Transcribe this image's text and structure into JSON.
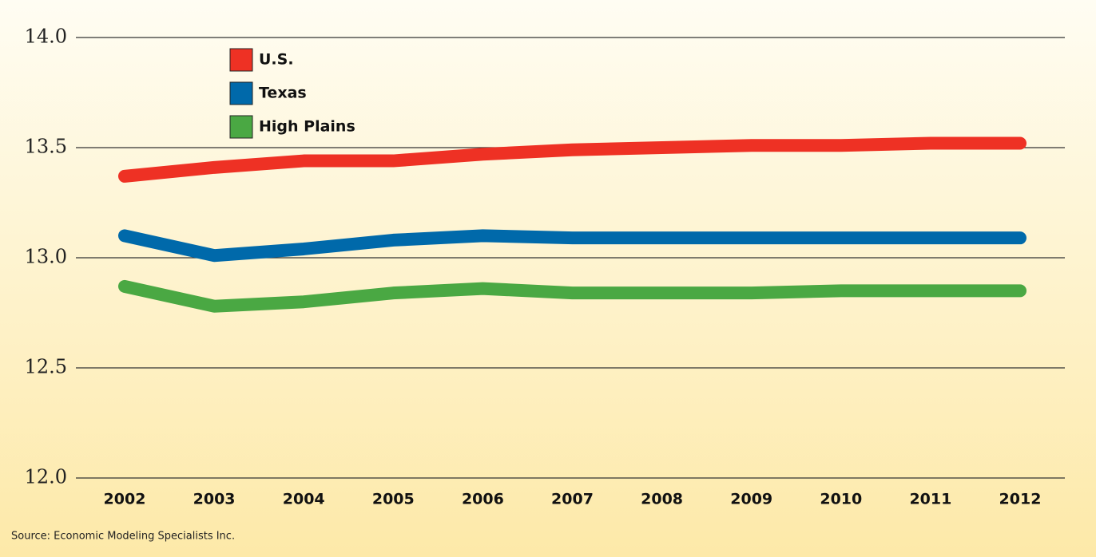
{
  "chart_data": {
    "type": "line",
    "source": "Source: Economic Modeling Specialists Inc.",
    "categories": [
      "2002",
      "2003",
      "2004",
      "2005",
      "2006",
      "2007",
      "2008",
      "2009",
      "2010",
      "2011",
      "2012"
    ],
    "series": [
      {
        "name": "U.S.",
        "color": "#ee3124",
        "values": [
          13.37,
          13.41,
          13.44,
          13.44,
          13.47,
          13.49,
          13.5,
          13.51,
          13.51,
          13.52,
          13.52
        ]
      },
      {
        "name": "Texas",
        "color": "#0069aa",
        "values": [
          13.1,
          13.01,
          13.04,
          13.08,
          13.1,
          13.09,
          13.09,
          13.09,
          13.09,
          13.09,
          13.09
        ]
      },
      {
        "name": "High Plains",
        "color": "#4aa843",
        "values": [
          12.87,
          12.78,
          12.8,
          12.84,
          12.86,
          12.84,
          12.84,
          12.84,
          12.85,
          12.85,
          12.85
        ]
      }
    ],
    "ylim": [
      12,
      14
    ],
    "yticks": [
      {
        "value": 12,
        "label": "12.0"
      },
      {
        "value": 12.5,
        "label": "12.5"
      },
      {
        "value": 13,
        "label": "13.0"
      },
      {
        "value": 13.5,
        "label": "13.5"
      },
      {
        "value": 14,
        "label": "14.0"
      }
    ],
    "grid": true
  }
}
